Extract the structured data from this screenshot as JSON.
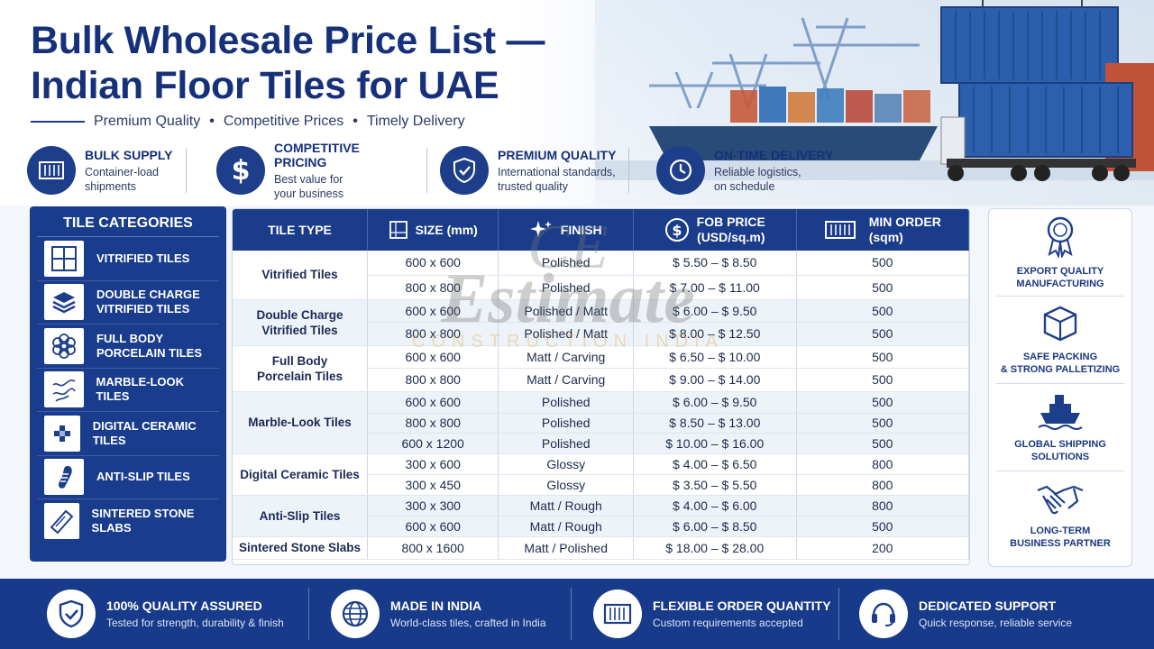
{
  "header": {
    "title_line1": "Bulk Wholesale Price List —",
    "title_line2": "Indian Floor Tiles for UAE",
    "taglines": [
      "Premium Quality",
      "Competitive Prices",
      "Timely Delivery"
    ]
  },
  "features": [
    {
      "icon": "container-icon",
      "title": "BULK SUPPLY",
      "desc1": "Container-load",
      "desc2": "shipments"
    },
    {
      "icon": "dollar-icon",
      "title": "COMPETITIVE PRICING",
      "desc1": "Best value for",
      "desc2": "your business"
    },
    {
      "icon": "shield-check-icon",
      "title": "PREMIUM QUALITY",
      "desc1": "International standards,",
      "desc2": "trusted quality"
    },
    {
      "icon": "clock-icon",
      "title": "ON-TIME DELIVERY",
      "desc1": "Reliable logistics,",
      "desc2": "on schedule"
    }
  ],
  "categories": {
    "heading": "TILE CATEGORIES",
    "items": [
      {
        "line1": "VITRIFIED TILES",
        "line2": ""
      },
      {
        "line1": "DOUBLE CHARGE",
        "line2": "VITRIFIED TILES"
      },
      {
        "line1": "FULL BODY",
        "line2": "PORCELAIN TILES"
      },
      {
        "line1": "MARBLE-LOOK TILES",
        "line2": ""
      },
      {
        "line1": "DIGITAL CERAMIC TILES",
        "line2": ""
      },
      {
        "line1": "ANTI-SLIP TILES",
        "line2": ""
      },
      {
        "line1": "SINTERED STONE SLABS",
        "line2": ""
      }
    ]
  },
  "table": {
    "headers": {
      "type": "TILE TYPE",
      "size": "SIZE (mm)",
      "finish": "FINISH",
      "price_1": "FOB PRICE",
      "price_2": "(USD/sq.m)",
      "min_1": "MIN ORDER",
      "min_2": "(sqm)"
    },
    "groups": [
      {
        "type1": "Vitrified Tiles",
        "type2": "",
        "rows": [
          {
            "size": "600 x 600",
            "finish": "Polished",
            "price": "$ 5.50 – $ 8.50",
            "min": "500"
          },
          {
            "size": "800 x 800",
            "finish": "Polished",
            "price": "$ 7.00 – $ 11.00",
            "min": "500"
          }
        ]
      },
      {
        "type1": "Double Charge",
        "type2": "Vitrified Tiles",
        "rows": [
          {
            "size": "600 x 600",
            "finish": "Polished / Matt",
            "price": "$ 6.00 – $ 9.50",
            "min": "500"
          },
          {
            "size": "800 x 800",
            "finish": "Polished / Matt",
            "price": "$ 8.00 – $ 12.50",
            "min": "500"
          }
        ]
      },
      {
        "type1": "Full Body",
        "type2": "Porcelain Tiles",
        "rows": [
          {
            "size": "600 x 600",
            "finish": "Matt / Carving",
            "price": "$ 6.50 – $ 10.00",
            "min": "500"
          },
          {
            "size": "800 x 800",
            "finish": "Matt / Carving",
            "price": "$ 9.00 – $ 14.00",
            "min": "500"
          }
        ]
      },
      {
        "type1": "Marble-Look Tiles",
        "type2": "",
        "rows": [
          {
            "size": "600 x 600",
            "finish": "Polished",
            "price": "$ 6.00 – $ 9.50",
            "min": "500"
          },
          {
            "size": "800 x 800",
            "finish": "Polished",
            "price": "$ 8.50 – $ 13.00",
            "min": "500"
          },
          {
            "size": "600 x 1200",
            "finish": "Polished",
            "price": "$ 10.00 – $ 16.00",
            "min": "500"
          }
        ]
      },
      {
        "type1": "Digital Ceramic Tiles",
        "type2": "",
        "rows": [
          {
            "size": "300 x 600",
            "finish": "Glossy",
            "price": "$ 4.00 – $ 6.50",
            "min": "800"
          },
          {
            "size": "300 x 450",
            "finish": "Glossy",
            "price": "$ 3.50 – $ 5.50",
            "min": "800"
          }
        ]
      },
      {
        "type1": "Anti-Slip Tiles",
        "type2": "",
        "rows": [
          {
            "size": "300 x 300",
            "finish": "Matt / Rough",
            "price": "$ 4.00 – $ 6.00",
            "min": "800"
          },
          {
            "size": "600 x 600",
            "finish": "Matt / Rough",
            "price": "$ 6.00 – $ 8.50",
            "min": "500"
          }
        ]
      },
      {
        "type1": "Sintered Stone Slabs",
        "type2": "",
        "rows": [
          {
            "size": "800 x 1600",
            "finish": "Matt / Polished",
            "price": "$ 18.00 – $ 28.00",
            "min": "200"
          }
        ]
      }
    ]
  },
  "side": [
    {
      "icon": "award-icon",
      "line1": "EXPORT QUALITY",
      "line2": "MANUFACTURING"
    },
    {
      "icon": "package-icon",
      "line1": "SAFE PACKING",
      "line2": "& STRONG PALLETIZING"
    },
    {
      "icon": "ship-icon",
      "line1": "GLOBAL SHIPPING",
      "line2": "SOLUTIONS"
    },
    {
      "icon": "handshake-icon",
      "line1": "LONG-TERM",
      "line2": "BUSINESS PARTNER"
    }
  ],
  "footer": [
    {
      "icon": "shield-check-icon",
      "title": "100% QUALITY ASSURED",
      "desc": "Tested for strength, durability & finish"
    },
    {
      "icon": "globe-icon",
      "title": "MADE IN INDIA",
      "desc": "World-class tiles, crafted in India"
    },
    {
      "icon": "container-icon",
      "title": "FLEXIBLE ORDER QUANTITY",
      "desc": "Custom requirements accepted"
    },
    {
      "icon": "headset-icon",
      "title": "DEDICATED SUPPORT",
      "desc": "Quick response, reliable service"
    }
  ],
  "watermark": {
    "line1": "CE",
    "line2": "Estimate",
    "line3": "CONSTRUCTION INDIA"
  }
}
